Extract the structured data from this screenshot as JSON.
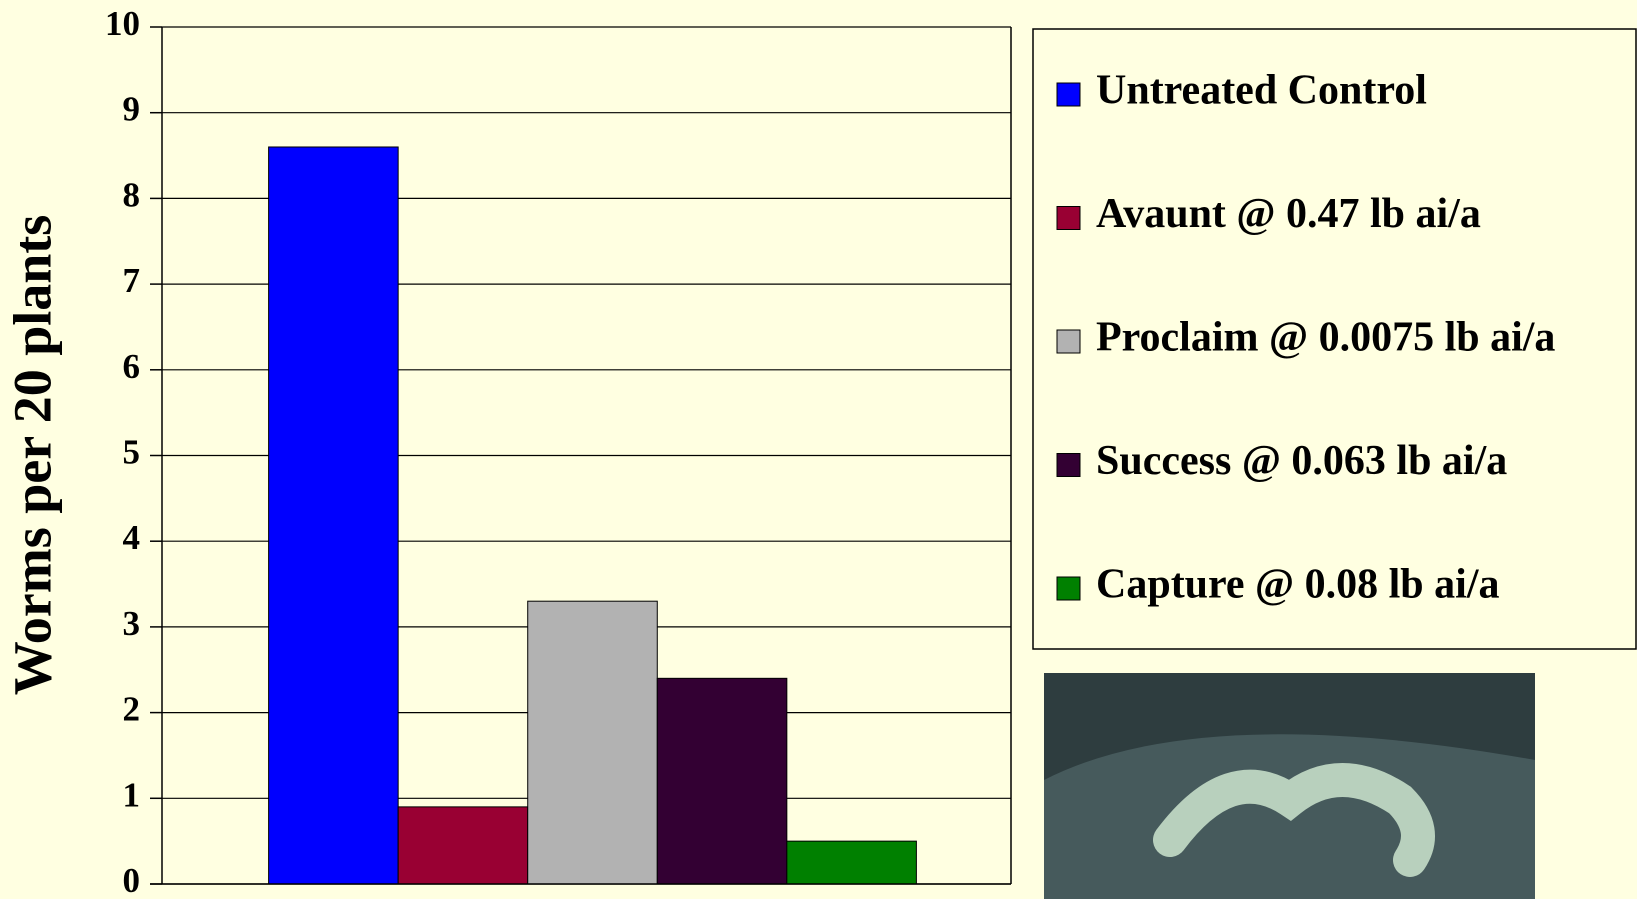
{
  "chart_data": {
    "type": "bar",
    "y_label": "Worms per 20 plants",
    "categories": [
      null
    ],
    "series": [
      {
        "name": "Untreated Control",
        "color": "#0000ff",
        "values": [
          8.6
        ]
      },
      {
        "name": "Avaunt @ 0.47 lb ai/a",
        "color": "#990033",
        "values": [
          0.9
        ]
      },
      {
        "name": "Proclaim @ 0.0075 lb ai/a",
        "color": "#b2b2b2",
        "values": [
          3.3
        ]
      },
      {
        "name": "Success @ 0.063 lb ai/a",
        "color": "#330033",
        "values": [
          2.4
        ]
      },
      {
        "name": "Capture @ 0.08 lb ai/a",
        "color": "#008000",
        "values": [
          0.5
        ]
      }
    ],
    "ylim": [
      0,
      10
    ],
    "yticks": [
      0,
      1,
      2,
      3,
      4,
      5,
      6,
      7,
      8,
      9,
      10
    ],
    "grid": true,
    "legend": "right"
  }
}
